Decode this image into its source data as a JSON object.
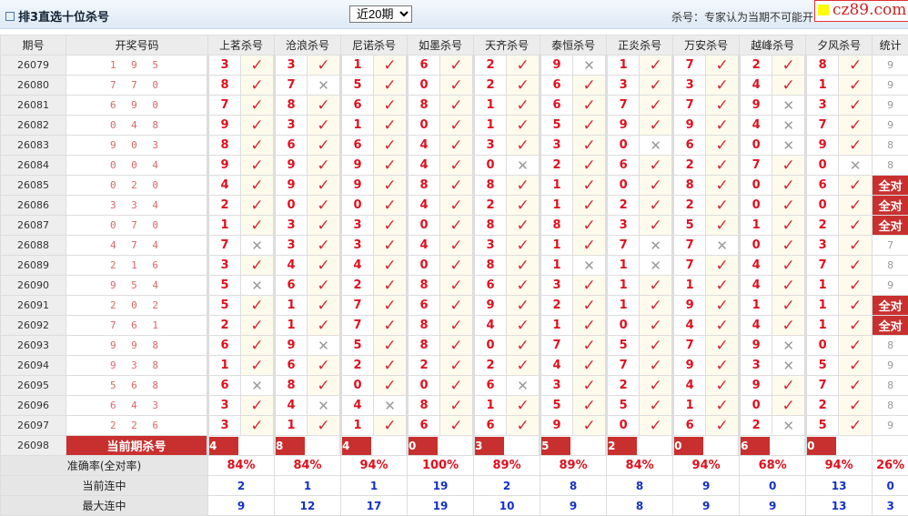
{
  "header": {
    "title": "排3直选十位杀号",
    "period_select": "近20期",
    "note": "杀号：专家认为当期不可能开",
    "logo": "cz89.com"
  },
  "columns": {
    "period": "期号",
    "draw": "开奖号码",
    "experts": [
      "上茗杀号",
      "沧浪杀号",
      "尼诺杀号",
      "如墨杀号",
      "天齐杀号",
      "泰恒杀号",
      "正炎杀号",
      "万安杀号",
      "越峰杀号",
      "夕风杀号"
    ],
    "stat": "统计"
  },
  "marks": {
    "hit": "✓",
    "miss": "✕"
  },
  "rows": [
    {
      "period": "26079",
      "draw": "195",
      "kills": [
        3,
        3,
        1,
        6,
        2,
        9,
        1,
        7,
        2,
        8
      ],
      "stat": "9"
    },
    {
      "period": "26080",
      "draw": "770",
      "kills": [
        8,
        7,
        5,
        0,
        2,
        6,
        3,
        3,
        4,
        1
      ],
      "stat": "9"
    },
    {
      "period": "26081",
      "draw": "690",
      "kills": [
        7,
        8,
        6,
        8,
        1,
        6,
        7,
        7,
        9,
        3
      ],
      "stat": "9"
    },
    {
      "period": "26082",
      "draw": "048",
      "kills": [
        9,
        3,
        1,
        0,
        1,
        5,
        9,
        9,
        4,
        7
      ],
      "stat": "9"
    },
    {
      "period": "26083",
      "draw": "903",
      "kills": [
        8,
        6,
        6,
        4,
        3,
        3,
        0,
        6,
        0,
        9
      ],
      "stat": "8"
    },
    {
      "period": "26084",
      "draw": "004",
      "kills": [
        9,
        9,
        9,
        4,
        0,
        2,
        6,
        2,
        7,
        0
      ],
      "stat": "8"
    },
    {
      "period": "26085",
      "draw": "020",
      "kills": [
        4,
        9,
        9,
        8,
        8,
        1,
        0,
        8,
        0,
        6
      ],
      "stat": "全对"
    },
    {
      "period": "26086",
      "draw": "334",
      "kills": [
        2,
        0,
        0,
        4,
        2,
        1,
        2,
        2,
        0,
        0
      ],
      "stat": "全对"
    },
    {
      "period": "26087",
      "draw": "070",
      "kills": [
        1,
        3,
        3,
        0,
        8,
        8,
        3,
        5,
        1,
        2
      ],
      "stat": "全对"
    },
    {
      "period": "26088",
      "draw": "474",
      "kills": [
        7,
        3,
        3,
        4,
        3,
        1,
        7,
        7,
        0,
        3
      ],
      "stat": "7"
    },
    {
      "period": "26089",
      "draw": "216",
      "kills": [
        3,
        4,
        4,
        0,
        8,
        1,
        1,
        7,
        4,
        7
      ],
      "stat": "8"
    },
    {
      "period": "26090",
      "draw": "954",
      "kills": [
        5,
        6,
        2,
        8,
        6,
        3,
        1,
        1,
        4,
        1
      ],
      "stat": "9"
    },
    {
      "period": "26091",
      "draw": "202",
      "kills": [
        5,
        1,
        7,
        6,
        9,
        2,
        1,
        9,
        1,
        1
      ],
      "stat": "全对"
    },
    {
      "period": "26092",
      "draw": "761",
      "kills": [
        2,
        1,
        7,
        8,
        4,
        1,
        0,
        4,
        4,
        1
      ],
      "stat": "全对"
    },
    {
      "period": "26093",
      "draw": "998",
      "kills": [
        6,
        9,
        5,
        8,
        0,
        7,
        5,
        7,
        9,
        0
      ],
      "stat": "8"
    },
    {
      "period": "26094",
      "draw": "938",
      "kills": [
        1,
        6,
        2,
        2,
        2,
        4,
        7,
        9,
        3,
        5
      ],
      "stat": "9"
    },
    {
      "period": "26095",
      "draw": "568",
      "kills": [
        6,
        8,
        0,
        0,
        6,
        3,
        2,
        4,
        9,
        7
      ],
      "stat": "8"
    },
    {
      "period": "26096",
      "draw": "643",
      "kills": [
        3,
        4,
        4,
        8,
        1,
        5,
        5,
        1,
        0,
        2
      ],
      "stat": "8"
    },
    {
      "period": "26097",
      "draw": "226",
      "kills": [
        3,
        1,
        1,
        6,
        6,
        9,
        0,
        6,
        2,
        5
      ],
      "stat": "9"
    }
  ],
  "current": {
    "period": "26098",
    "label": "当前期杀号",
    "kills": [
      4,
      8,
      4,
      0,
      3,
      5,
      2,
      0,
      6,
      0
    ]
  },
  "footer": {
    "accuracy": {
      "label": "准确率(全对率)",
      "values": [
        "84%",
        "84%",
        "94%",
        "100%",
        "89%",
        "89%",
        "84%",
        "94%",
        "68%",
        "94%"
      ],
      "stat": "26%"
    },
    "current_streak": {
      "label": "当前连中",
      "values": [
        "2",
        "1",
        "1",
        "19",
        "2",
        "8",
        "8",
        "9",
        "0",
        "13"
      ],
      "stat": "0"
    },
    "max_streak": {
      "label": "最大连中",
      "values": [
        "9",
        "12",
        "17",
        "19",
        "10",
        "9",
        "8",
        "9",
        "9",
        "13"
      ],
      "stat": "3"
    }
  }
}
